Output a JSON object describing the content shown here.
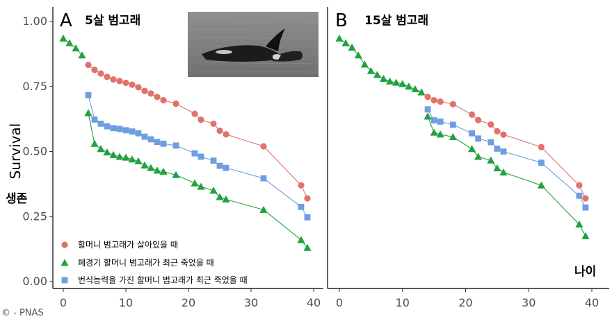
{
  "colors": {
    "red": "#E0736B",
    "green": "#21A23F",
    "blue": "#6C9EE0"
  },
  "y_axis_label": "Survival",
  "y_axis_label_ko": "생존",
  "x_axis_label_ko": "나이",
  "credit": "© - PNAS",
  "photo": {
    "icon": "orca-photo",
    "description_visible": false
  },
  "chart_data": [
    {
      "type": "line",
      "panel_letter": "A",
      "title": "5살 범고래",
      "x_ticks": [
        "0",
        "10",
        "20",
        "30",
        "40"
      ],
      "y_ticks": [
        "0.00",
        "0.25",
        "0.50",
        "0.75",
        "1.00"
      ],
      "xlim": [
        -1.5,
        41
      ],
      "ylim": [
        -0.02,
        1.04
      ],
      "grid": false,
      "legend_position": "bottom-left",
      "series": [
        {
          "name": "할머니 범고래가 살아있을 때",
          "color": "#E0736B",
          "marker": "circle",
          "x": [
            4,
            5,
            6,
            7,
            8,
            9,
            10,
            11,
            12,
            13,
            14,
            15,
            16,
            18,
            21,
            22,
            24,
            25,
            26,
            32,
            38,
            39
          ],
          "y": [
            0.833,
            0.814,
            0.8,
            0.787,
            0.777,
            0.771,
            0.764,
            0.757,
            0.747,
            0.733,
            0.723,
            0.71,
            0.697,
            0.684,
            0.645,
            0.622,
            0.607,
            0.58,
            0.566,
            0.52,
            0.37,
            0.32
          ]
        },
        {
          "name": "폐경기 할머니 범고래가 최근 죽었을 때",
          "color": "#21A23F",
          "marker": "triangle",
          "x": [
            4,
            5,
            6,
            7,
            8,
            9,
            10,
            11,
            12,
            13,
            14,
            15,
            16,
            18,
            21,
            22,
            24,
            25,
            26,
            32,
            38,
            39
          ],
          "y": [
            0.648,
            0.53,
            0.51,
            0.497,
            0.487,
            0.48,
            0.477,
            0.47,
            0.463,
            0.447,
            0.437,
            0.427,
            0.423,
            0.41,
            0.378,
            0.365,
            0.35,
            0.325,
            0.316,
            0.276,
            0.16,
            0.13
          ]
        },
        {
          "name": "번식능력을 가진 할머니 범고래가 최근 죽었을 때",
          "color": "#6C9EE0",
          "marker": "square",
          "x": [
            4,
            5,
            6,
            7,
            8,
            9,
            10,
            11,
            12,
            13,
            14,
            15,
            16,
            18,
            21,
            22,
            24,
            25,
            26,
            32,
            38,
            39
          ],
          "y": [
            0.717,
            0.623,
            0.607,
            0.597,
            0.59,
            0.587,
            0.582,
            0.577,
            0.57,
            0.557,
            0.547,
            0.537,
            0.53,
            0.523,
            0.493,
            0.48,
            0.465,
            0.445,
            0.437,
            0.397,
            0.287,
            0.247
          ]
        },
        {
          "name": "",
          "color": "#21A23F",
          "marker": "triangle",
          "x": [
            0,
            1,
            2,
            3
          ],
          "y": [
            0.935,
            0.917,
            0.897,
            0.87
          ]
        }
      ]
    },
    {
      "type": "line",
      "panel_letter": "B",
      "title": "15살 범고래",
      "x_ticks": [
        "0",
        "10",
        "20",
        "30",
        "40"
      ],
      "y_ticks": [],
      "xlim": [
        -1.5,
        41
      ],
      "ylim": [
        -0.02,
        1.04
      ],
      "grid": false,
      "series": [
        {
          "name": "할머니 범고래가 살아있을 때",
          "color": "#E0736B",
          "marker": "circle",
          "x": [
            14,
            15,
            16,
            18,
            21,
            22,
            24,
            25,
            26,
            32,
            38,
            39
          ],
          "y": [
            0.71,
            0.697,
            0.692,
            0.682,
            0.642,
            0.621,
            0.604,
            0.578,
            0.565,
            0.517,
            0.37,
            0.32
          ]
        },
        {
          "name": "폐경기 할머니 범고래가 최근 죽었을 때",
          "color": "#21A23F",
          "marker": "triangle",
          "x": [
            14,
            15,
            16,
            18,
            21,
            22,
            24,
            25,
            26,
            32,
            38,
            39
          ],
          "y": [
            0.635,
            0.573,
            0.566,
            0.556,
            0.51,
            0.48,
            0.466,
            0.436,
            0.42,
            0.37,
            0.22,
            0.175
          ]
        },
        {
          "name": "번식능력을 가진 할머니 범고래가 최근 죽었을 때",
          "color": "#6C9EE0",
          "marker": "square",
          "x": [
            14,
            15,
            16,
            18,
            21,
            22,
            24,
            25,
            26,
            32,
            38,
            39
          ],
          "y": [
            0.662,
            0.62,
            0.615,
            0.603,
            0.57,
            0.55,
            0.536,
            0.511,
            0.5,
            0.457,
            0.33,
            0.285
          ]
        },
        {
          "name": "",
          "color": "#21A23F",
          "marker": "triangle",
          "x": [
            0,
            1,
            2,
            3,
            4,
            5,
            6,
            7,
            8,
            9,
            10,
            11,
            12,
            13
          ],
          "y": [
            0.935,
            0.917,
            0.9,
            0.87,
            0.835,
            0.81,
            0.795,
            0.78,
            0.77,
            0.765,
            0.76,
            0.75,
            0.74,
            0.728
          ]
        }
      ]
    }
  ]
}
